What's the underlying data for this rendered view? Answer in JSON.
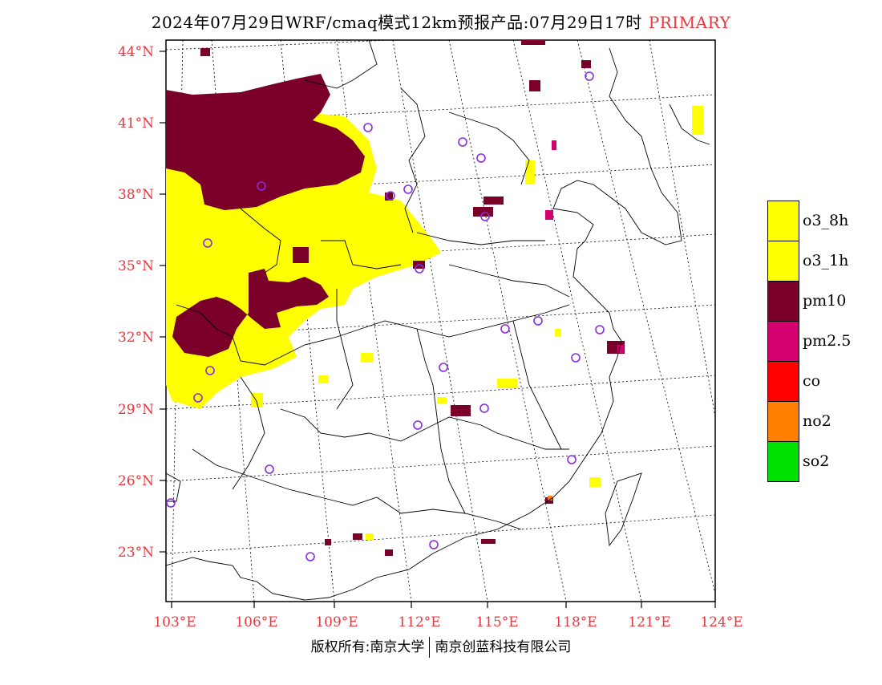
{
  "title": {
    "text": "2024年07月29日WRF/cmaq模式12km预报产品:07月29日17时",
    "tag": "PRIMARY"
  },
  "colors": {
    "axis_text": "#e8373d",
    "o3_8h": "#ffff00",
    "o3_1h": "#ffff00",
    "pm10": "#7a0029",
    "pm2_5": "#d4006f",
    "co": "#ff0000",
    "no2": "#ff7f00",
    "so2": "#00e100",
    "station_marker": "#8a2be2"
  },
  "map": {
    "lat_labels": [
      "44°N",
      "41°N",
      "38°N",
      "35°N",
      "32°N",
      "29°N",
      "26°N",
      "23°N"
    ],
    "lon_labels": [
      "103°E",
      "106°E",
      "109°E",
      "112°E",
      "115°E",
      "118°E",
      "121°E",
      "124°E"
    ]
  },
  "legend": [
    {
      "key": "o3_8h",
      "label": "o3_8h",
      "color": "#ffff00"
    },
    {
      "key": "o3_1h",
      "label": "o3_1h",
      "color": "#ffff00"
    },
    {
      "key": "pm10",
      "label": "pm10",
      "color": "#7a0029"
    },
    {
      "key": "pm2_5",
      "label": "pm2.5",
      "color": "#d4006f"
    },
    {
      "key": "co",
      "label": "co",
      "color": "#ff0000"
    },
    {
      "key": "no2",
      "label": "no2",
      "color": "#ff7f00"
    },
    {
      "key": "so2",
      "label": "so2",
      "color": "#00e100"
    }
  ],
  "footer": {
    "left": "版权所有:南京大学",
    "right": "南京创蓝科技有限公司"
  }
}
